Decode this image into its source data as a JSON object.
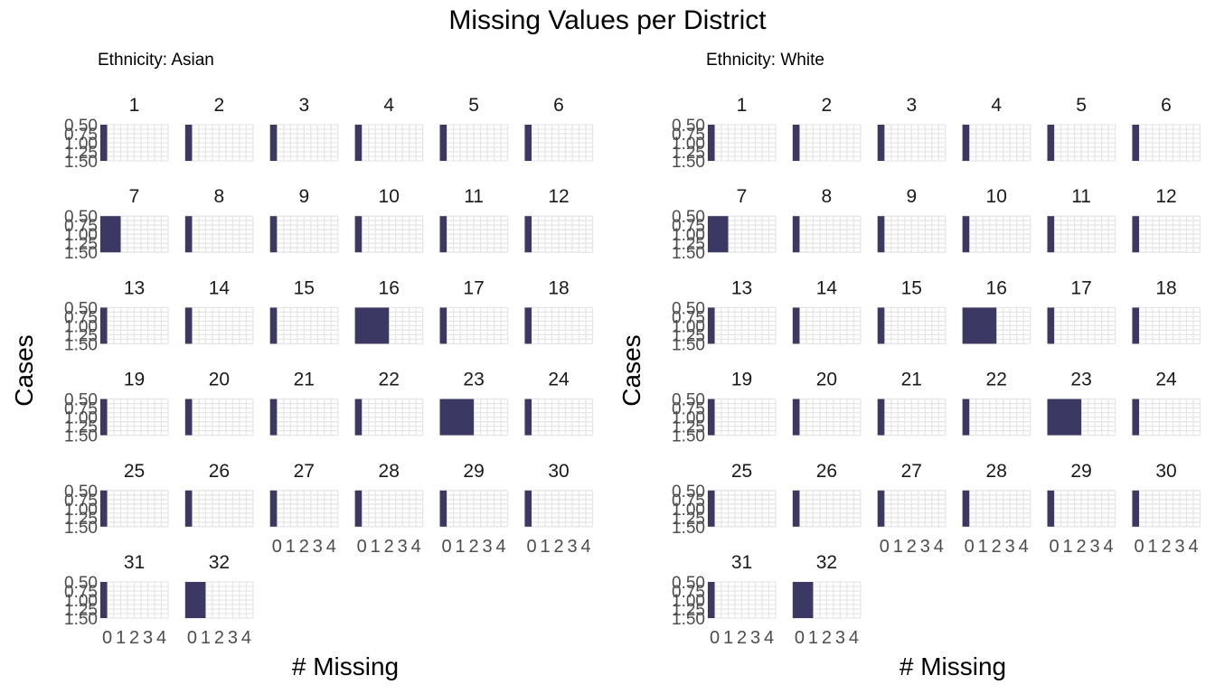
{
  "chart_data": {
    "type": "bar",
    "title": "Missing Values per District",
    "xlabel": "# Missing",
    "ylabel": "Cases",
    "bar_color": "#3b3863",
    "grid_color": "#e6e6e6",
    "xlim": [
      -0.5,
      4.5
    ],
    "x_ticks": [
      "0",
      "1",
      "2",
      "3",
      "4"
    ],
    "ylim": [
      0.5,
      1.5
    ],
    "y_ticks": [
      "0.50",
      "0.75",
      "1.00",
      "1.25",
      "1.50"
    ],
    "panels": [
      {
        "subtitle": "Ethnicity: Asian",
        "districts": [
          "1",
          "2",
          "3",
          "4",
          "5",
          "6",
          "7",
          "8",
          "9",
          "10",
          "11",
          "12",
          "13",
          "14",
          "15",
          "16",
          "17",
          "18",
          "19",
          "20",
          "21",
          "22",
          "23",
          "24",
          "25",
          "26",
          "27",
          "28",
          "29",
          "30",
          "31",
          "32"
        ],
        "missing": [
          0,
          0,
          0,
          0,
          0,
          0,
          1,
          0,
          0,
          0,
          0,
          0,
          0,
          0,
          0,
          2,
          0,
          0,
          0,
          0,
          0,
          0,
          2,
          0,
          0,
          0,
          0,
          0,
          0,
          0,
          0,
          1
        ],
        "cases": [
          1,
          1,
          1,
          1,
          1,
          1,
          1,
          1,
          1,
          1,
          1,
          1,
          1,
          1,
          1,
          1,
          1,
          1,
          1,
          1,
          1,
          1,
          1,
          1,
          1,
          1,
          1,
          1,
          1,
          1,
          1,
          1
        ]
      },
      {
        "subtitle": "Ethnicity: White",
        "districts": [
          "1",
          "2",
          "3",
          "4",
          "5",
          "6",
          "7",
          "8",
          "9",
          "10",
          "11",
          "12",
          "13",
          "14",
          "15",
          "16",
          "17",
          "18",
          "19",
          "20",
          "21",
          "22",
          "23",
          "24",
          "25",
          "26",
          "27",
          "28",
          "29",
          "30",
          "31",
          "32"
        ],
        "missing": [
          0,
          0,
          0,
          0,
          0,
          0,
          1,
          0,
          0,
          0,
          0,
          0,
          0,
          0,
          0,
          2,
          0,
          0,
          0,
          0,
          0,
          0,
          2,
          0,
          0,
          0,
          0,
          0,
          0,
          0,
          0,
          1
        ],
        "cases": [
          1,
          1,
          1,
          1,
          1,
          1,
          1,
          1,
          1,
          1,
          1,
          1,
          1,
          1,
          1,
          1,
          1,
          1,
          1,
          1,
          1,
          1,
          1,
          1,
          1,
          1,
          1,
          1,
          1,
          1,
          1,
          1
        ]
      }
    ]
  }
}
